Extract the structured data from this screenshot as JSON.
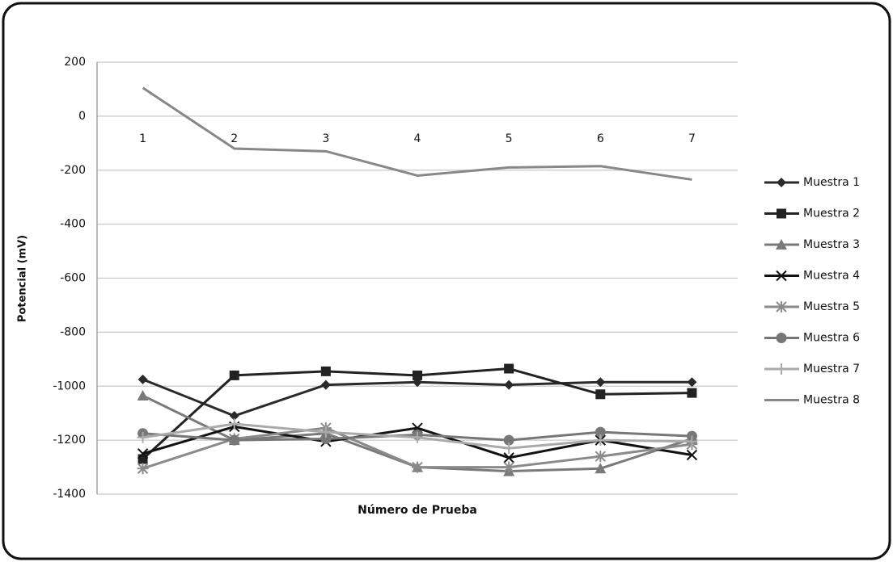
{
  "chart_data": {
    "type": "line",
    "x_label": "Número de Prueba",
    "y_label": "Potencial (mV)",
    "categories": [
      "1",
      "2",
      "3",
      "4",
      "5",
      "6",
      "7"
    ],
    "ylim": [
      -1400,
      200
    ],
    "yticks": [
      -1400,
      -1200,
      -1000,
      -800,
      -600,
      -400,
      -200,
      0,
      200
    ],
    "grid": true,
    "legend": "right",
    "series": [
      {
        "name": "Muestra 1",
        "color": "#2a2a2a",
        "marker": "diamond",
        "values": [
          -975,
          -1110,
          -995,
          -985,
          -995,
          -985,
          -985
        ]
      },
      {
        "name": "Muestra 2",
        "color": "#222222",
        "marker": "square",
        "values": [
          -1270,
          -960,
          -945,
          -960,
          -935,
          -1030,
          -1025
        ]
      },
      {
        "name": "Muestra 3",
        "color": "#7a7a7a",
        "marker": "triangle",
        "values": [
          -1035,
          -1200,
          -1175,
          -1300,
          -1315,
          -1305,
          -1195
        ]
      },
      {
        "name": "Muestra 4",
        "color": "#111111",
        "marker": "x",
        "values": [
          -1250,
          -1150,
          -1205,
          -1155,
          -1265,
          -1200,
          -1255
        ]
      },
      {
        "name": "Muestra 5",
        "color": "#8a8a8a",
        "marker": "asterisk",
        "values": [
          -1305,
          -1195,
          -1155,
          -1300,
          -1300,
          -1260,
          -1215
        ]
      },
      {
        "name": "Muestra 6",
        "color": "#777777",
        "marker": "circle",
        "values": [
          -1175,
          -1200,
          -1195,
          -1180,
          -1200,
          -1170,
          -1185
        ]
      },
      {
        "name": "Muestra 7",
        "color": "#aaaaaa",
        "marker": "plus",
        "values": [
          -1190,
          -1140,
          -1170,
          -1190,
          -1230,
          -1200,
          -1205
        ]
      },
      {
        "name": "Muestra 8",
        "color": "#888888",
        "marker": "none",
        "values": [
          105,
          -120,
          -130,
          -220,
          -190,
          -185,
          -235
        ]
      }
    ]
  }
}
